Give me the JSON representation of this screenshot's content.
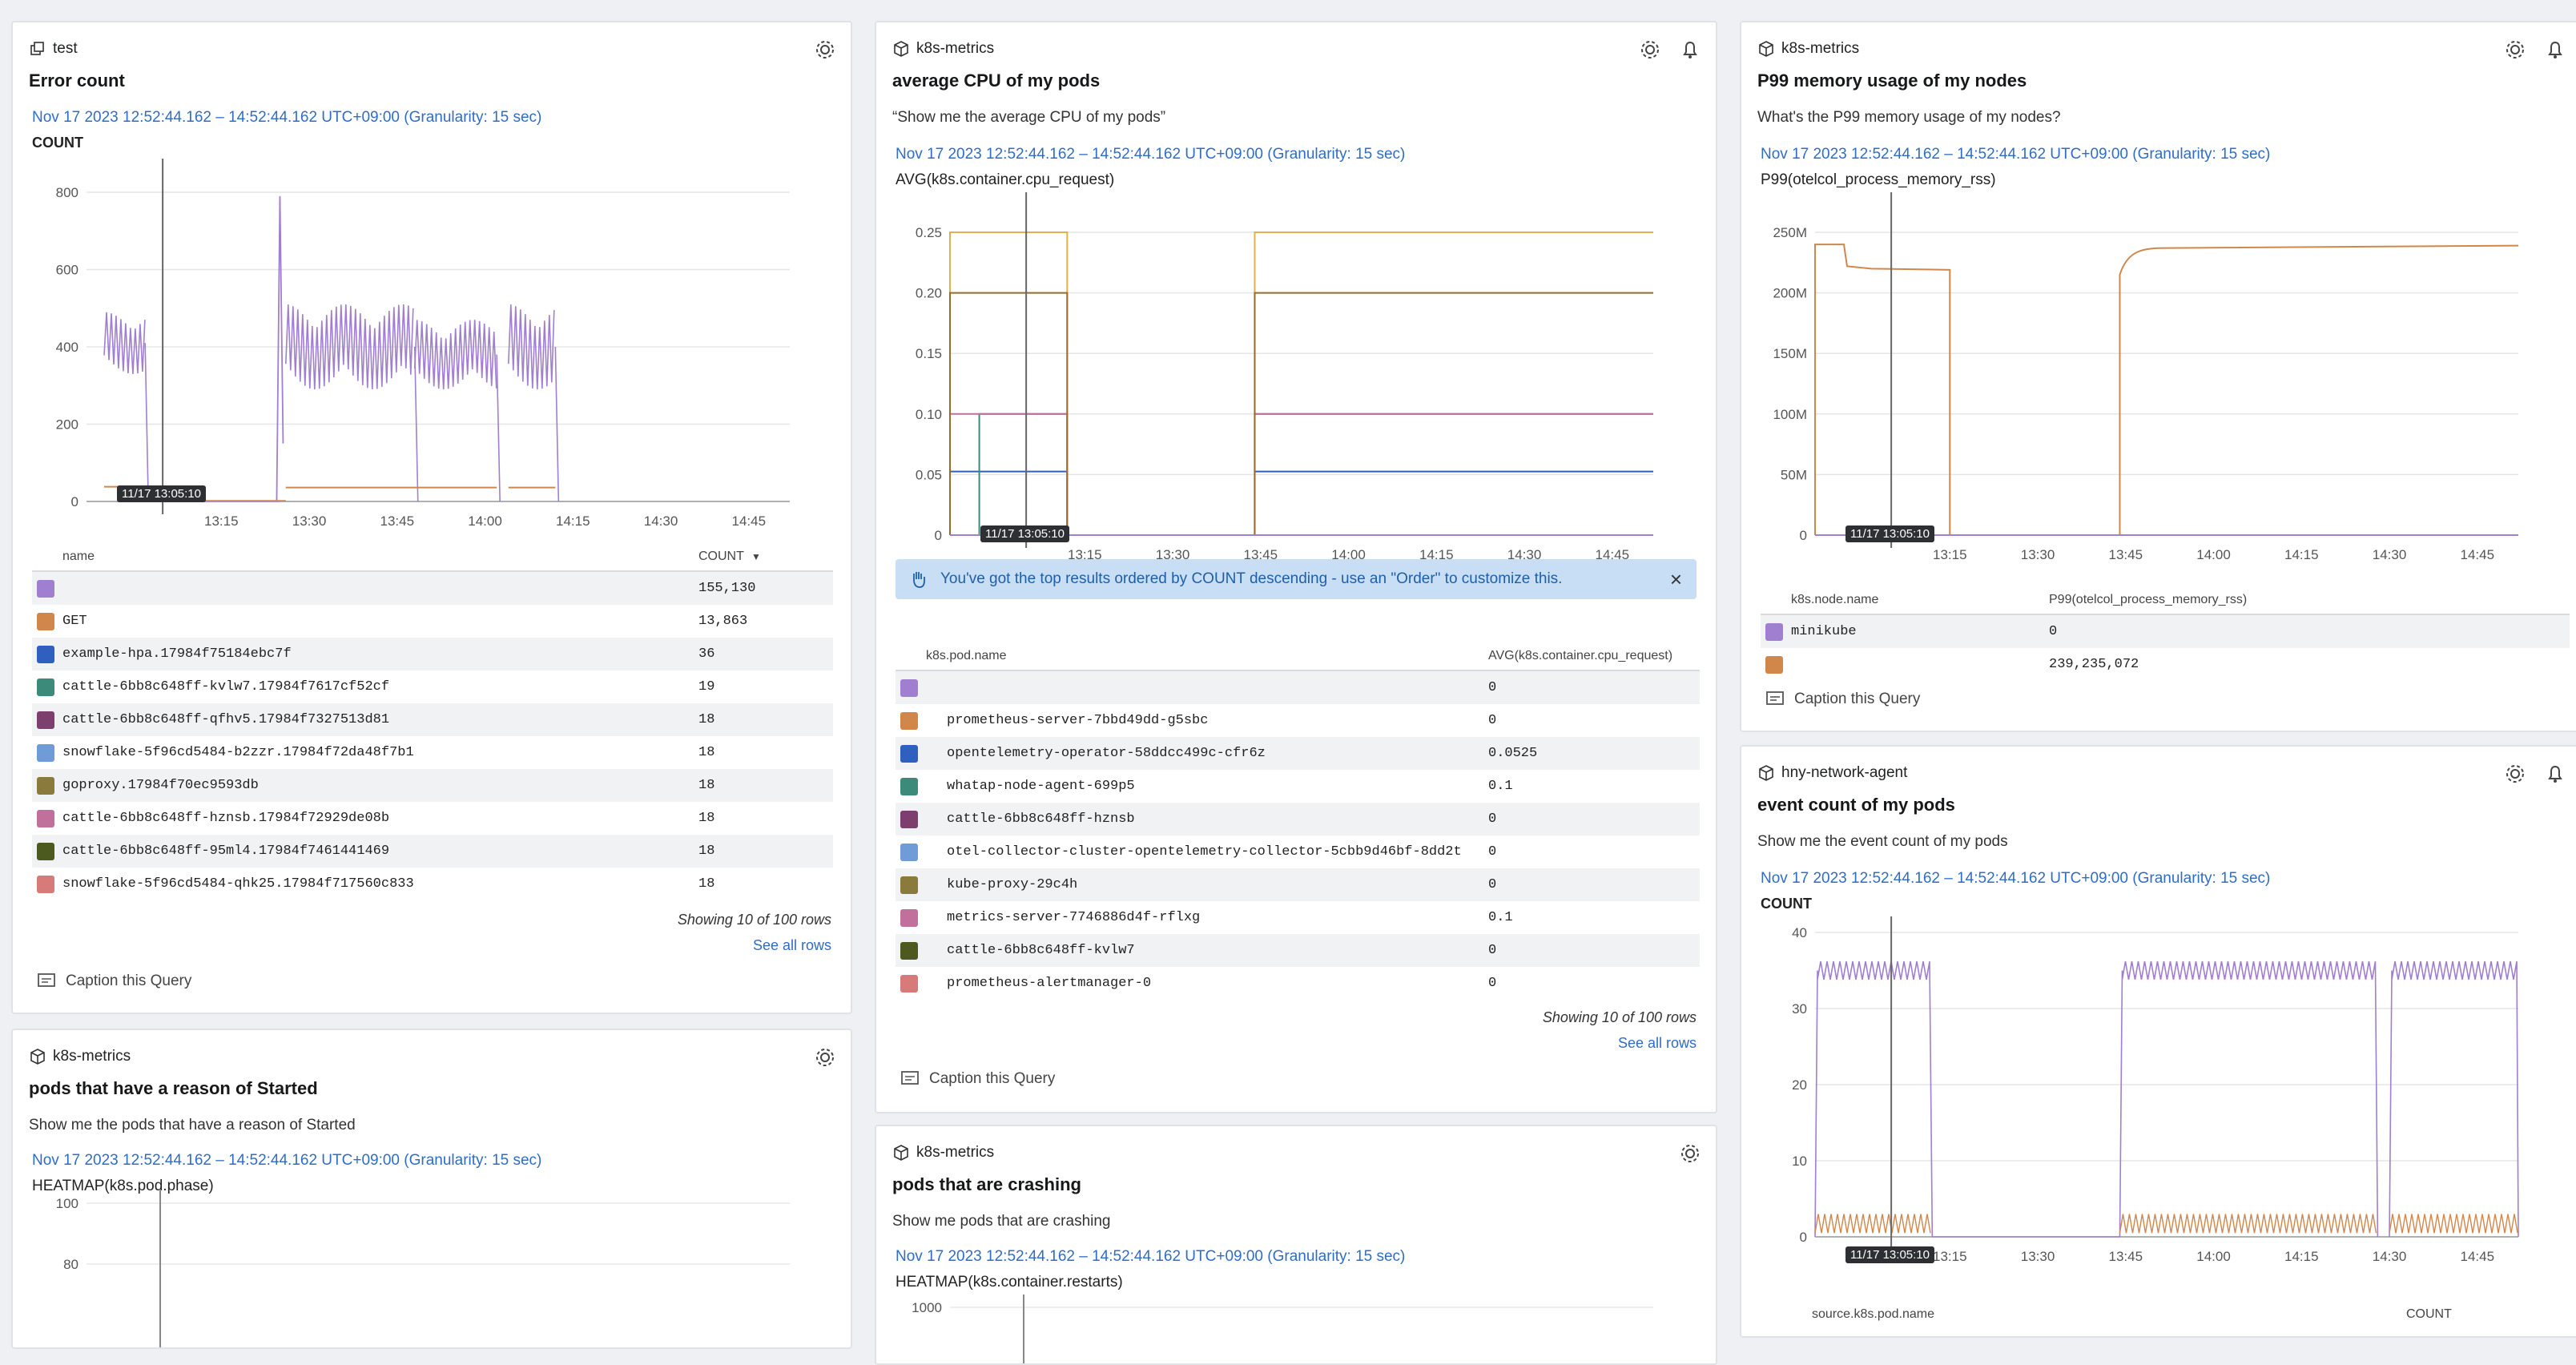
{
  "colors": {
    "purple": "#a07fd0",
    "orange": "#d2874a",
    "blue": "#2f5fbf",
    "teal": "#3b8a7a",
    "plum": "#7d3f6e",
    "skyblue": "#6f9bd6",
    "olive": "#8a7a3c",
    "pink": "#c0709a",
    "darkolive": "#4d5a1f",
    "salmon": "#d67a7a",
    "gold": "#e3b04b",
    "brown": "#9b6b2a",
    "link": "#2f6dc5"
  },
  "panels": {
    "error": {
      "source": "test",
      "title": "Error count",
      "timestamp": "Nov 17 2023 12:52:44.162 – 14:52:44.162 UTC+09:00 (Granularity: 15 sec)",
      "ylabel": "COUNT",
      "hover_time": "11/17 13:05:10",
      "table": {
        "col_name": "name",
        "col_value": "COUNT",
        "rows": [
          {
            "name": "",
            "value": "155,130",
            "color": "#a07fd0"
          },
          {
            "name": "GET",
            "value": "13,863",
            "color": "#d2874a"
          },
          {
            "name": "example-hpa.17984f75184ebc7f",
            "value": "36",
            "color": "#2f5fbf"
          },
          {
            "name": "cattle-6bb8c648ff-kvlw7.17984f7617cf52cf",
            "value": "19",
            "color": "#3b8a7a"
          },
          {
            "name": "cattle-6bb8c648ff-qfhv5.17984f7327513d81",
            "value": "18",
            "color": "#7d3f6e"
          },
          {
            "name": "snowflake-5f96cd5484-b2zzr.17984f72da48f7b1",
            "value": "18",
            "color": "#6f9bd6"
          },
          {
            "name": "goproxy.17984f70ec9593db",
            "value": "18",
            "color": "#8a7a3c"
          },
          {
            "name": "cattle-6bb8c648ff-hznsb.17984f72929de08b",
            "value": "18",
            "color": "#c0709a"
          },
          {
            "name": "cattle-6bb8c648ff-95ml4.17984f7461441469",
            "value": "18",
            "color": "#4d5a1f"
          },
          {
            "name": "snowflake-5f96cd5484-qhk25.17984f717560c833",
            "value": "18",
            "color": "#d67a7a"
          }
        ]
      },
      "showing": "Showing 10 of 100 rows",
      "see_all": "See all rows",
      "caption": "Caption this Query"
    },
    "cpu": {
      "source": "k8s-metrics",
      "title": "average CPU of my pods",
      "description": "“Show me the average CPU of my pods”",
      "timestamp": "Nov 17 2023 12:52:44.162 – 14:52:44.162 UTC+09:00 (Granularity: 15 sec)",
      "ylabel": "AVG(k8s.container.cpu_request)",
      "hover_time": "11/17 13:05:10",
      "banner": "You've got the top results ordered by COUNT descending - use an \"Order\" to customize this.",
      "banner_close": "×",
      "table": {
        "col_name": "k8s.pod.name",
        "col_value": "AVG(k8s.container.cpu_request)",
        "rows": [
          {
            "name": "",
            "value": "0",
            "color": "#a07fd0"
          },
          {
            "name": "prometheus-server-7bbd49dd-g5sbc",
            "value": "0",
            "color": "#d2874a"
          },
          {
            "name": "opentelemetry-operator-58ddcc499c-cfr6z",
            "value": "0.0525",
            "color": "#2f5fbf"
          },
          {
            "name": "whatap-node-agent-699p5",
            "value": "0.1",
            "color": "#3b8a7a"
          },
          {
            "name": "cattle-6bb8c648ff-hznsb",
            "value": "0",
            "color": "#7d3f6e"
          },
          {
            "name": "otel-collector-cluster-opentelemetry-collector-5cbb9d46bf-8dd2t",
            "value": "0",
            "color": "#6f9bd6"
          },
          {
            "name": "kube-proxy-29c4h",
            "value": "0",
            "color": "#8a7a3c"
          },
          {
            "name": "metrics-server-7746886d4f-rflxg",
            "value": "0.1",
            "color": "#c0709a"
          },
          {
            "name": "cattle-6bb8c648ff-kvlw7",
            "value": "0",
            "color": "#4d5a1f"
          },
          {
            "name": "prometheus-alertmanager-0",
            "value": "0",
            "color": "#d67a7a"
          }
        ]
      },
      "showing": "Showing 10 of 100 rows",
      "see_all": "See all rows",
      "caption": "Caption this Query"
    },
    "memory": {
      "source": "k8s-metrics",
      "title": "P99 memory usage of my nodes",
      "description": "What's the P99 memory usage of my nodes?",
      "timestamp": "Nov 17 2023 12:52:44.162 – 14:52:44.162 UTC+09:00 (Granularity: 15 sec)",
      "ylabel": "P99(otelcol_process_memory_rss)",
      "hover_time": "11/17 13:05:10",
      "table": {
        "col_name": "k8s.node.name",
        "col_value": "P99(otelcol_process_memory_rss)",
        "rows": [
          {
            "name": "minikube",
            "value": "0",
            "color": "#a07fd0"
          },
          {
            "name": "",
            "value": "239,235,072",
            "color": "#d2874a"
          }
        ]
      },
      "caption": "Caption this Query"
    },
    "started": {
      "source": "k8s-metrics",
      "title": "pods that have a reason of Started",
      "description": "Show me the pods that have a reason of Started",
      "timestamp": "Nov 17 2023 12:52:44.162 – 14:52:44.162 UTC+09:00 (Granularity: 15 sec)",
      "ylabel": "HEATMAP(k8s.pod.phase)",
      "yticks": [
        "100",
        "80"
      ]
    },
    "crashing": {
      "source": "k8s-metrics",
      "title": "pods that are crashing",
      "description": "Show me pods that are crashing",
      "timestamp": "Nov 17 2023 12:52:44.162 – 14:52:44.162 UTC+09:00 (Granularity: 15 sec)",
      "ylabel": "HEATMAP(k8s.container.restarts)",
      "yticks": [
        "1000"
      ]
    },
    "network": {
      "source": "hny-network-agent",
      "title": "event count of my pods",
      "description": "Show me the event count of my pods",
      "timestamp": "Nov 17 2023 12:52:44.162 – 14:52:44.162 UTC+09:00 (Granularity: 15 sec)",
      "ylabel": "COUNT",
      "hover_time": "11/17 13:05:10",
      "footer_cols": [
        "source.k8s.pod.name",
        "COUNT"
      ]
    }
  },
  "chart_data": [
    {
      "type": "line",
      "title": "Error count",
      "ylabel": "COUNT",
      "x_ticks": [
        "13:15",
        "13:30",
        "13:45",
        "14:00",
        "14:15",
        "14:30",
        "14:45"
      ],
      "y_ticks": [
        "0",
        "200",
        "400",
        "600",
        "800"
      ],
      "ylim": [
        0,
        800
      ],
      "series": [
        {
          "name": "",
          "color": "#a07fd0",
          "segments": [
            {
              "from": "12:55",
              "to": "13:02",
              "level": 410,
              "jitter": 80
            },
            {
              "from": "13:26",
              "to": "13:48",
              "level": 400,
              "jitter": 110
            },
            {
              "from": "13:48",
              "to": "14:02",
              "level": 380,
              "jitter": 90
            },
            {
              "from": "14:04",
              "to": "14:12",
              "level": 400,
              "jitter": 110
            }
          ],
          "spike": {
            "x": "13:25",
            "y": 790
          }
        },
        {
          "name": "GET",
          "color": "#d2874a",
          "segments": [
            {
              "from": "12:55",
              "to": "13:02",
              "level": 38
            },
            {
              "from": "13:26",
              "to": "14:02",
              "level": 36
            },
            {
              "from": "14:04",
              "to": "14:12",
              "level": 36
            }
          ]
        }
      ]
    },
    {
      "type": "line",
      "title": "average CPU of my pods",
      "ylabel": "AVG(k8s.container.cpu_request)",
      "x_ticks": [
        "13:15",
        "13:30",
        "13:45",
        "14:00",
        "14:15",
        "14:30",
        "14:45"
      ],
      "y_ticks": [
        "0",
        "0.05",
        "0.10",
        "0.15",
        "0.20",
        "0.25"
      ],
      "ylim": [
        0,
        0.25
      ],
      "series": [
        {
          "name": "",
          "color": "#a07fd0",
          "values": [
            0
          ]
        },
        {
          "name": "opentelemetry-operator-58ddcc499c-cfr6z",
          "color": "#2f5fbf",
          "level": 0.0525
        },
        {
          "name": "whatap-node-agent-699p5",
          "color": "#3b8a7a",
          "level": 0.1
        },
        {
          "name": "metrics-server-7746886d4f-rflxg",
          "color": "#c0709a",
          "level": 0.1
        },
        {
          "name": "",
          "color": "#e3b04b",
          "level": 0.25
        },
        {
          "name": "",
          "color": "#9b6b2a",
          "level": 0.2
        }
      ]
    },
    {
      "type": "line",
      "title": "P99 memory usage of my nodes",
      "ylabel": "P99(otelcol_process_memory_rss)",
      "x_ticks": [
        "13:15",
        "13:30",
        "13:45",
        "14:00",
        "14:15",
        "14:30",
        "14:45"
      ],
      "y_ticks": [
        "0",
        "50M",
        "100M",
        "150M",
        "200M",
        "250M"
      ],
      "ylim": [
        0,
        250000000
      ],
      "series": [
        {
          "name": "minikube",
          "color": "#a07fd0",
          "level": 0
        },
        {
          "name": "",
          "color": "#d2874a",
          "level": 239235072
        }
      ]
    },
    {
      "type": "line",
      "title": "event count of my pods",
      "ylabel": "COUNT",
      "x_ticks": [
        "13:15",
        "13:30",
        "13:45",
        "14:00",
        "14:15",
        "14:30",
        "14:45"
      ],
      "y_ticks": [
        "0",
        "10",
        "20",
        "30",
        "40"
      ],
      "ylim": [
        0,
        40
      ],
      "series": [
        {
          "name": "",
          "color": "#a07fd0",
          "level": 35
        },
        {
          "name": "",
          "color": "#d2874a",
          "level": 2
        }
      ]
    }
  ]
}
